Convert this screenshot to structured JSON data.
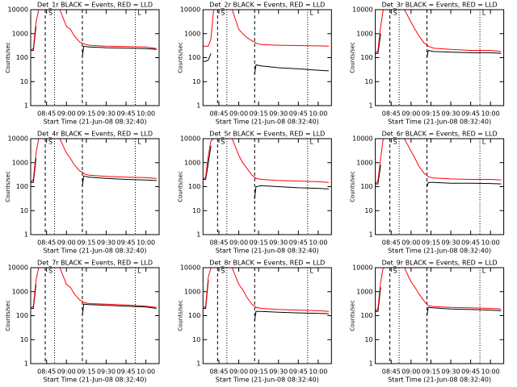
{
  "chart_data": [
    {
      "type": "line",
      "title": "Det_1r BLACK = Events, RED = LLD",
      "x_label": "Start Time (21-Jun-08 08:32:40)",
      "y_label": "Counts/sec",
      "log_y": true,
      "x": [
        "08:33",
        "08:35",
        "08:37",
        "08:39",
        "08:41",
        "08:50",
        "08:55",
        "09:00",
        "09:03",
        "09:06",
        "09:10",
        "09:12",
        "09:13",
        "09:17",
        "09:30",
        "09:45",
        "10:00",
        "10:08"
      ],
      "xlim": [
        "08:33",
        "10:10"
      ],
      "xticks": [
        "08:45",
        "09:00",
        "09:15",
        "09:30",
        "09:45",
        "10:00"
      ],
      "ylim": [
        1,
        10000
      ],
      "yticks": [
        1,
        10,
        100,
        1000,
        10000
      ],
      "dashed": [
        "08:44",
        "09:12"
      ],
      "dotted": [
        "08:51",
        "09:52"
      ],
      "annotations": [
        {
          "text": "S",
          "x": "08:48"
        },
        {
          "text": "L",
          "x": "09:55"
        }
      ],
      "series": [
        {
          "name": "BLACK",
          "color": "#000000",
          "values": [
            200,
            200,
            2000,
            null,
            null,
            null,
            null,
            null,
            null,
            null,
            null,
            100,
            300,
            280,
            260,
            250,
            240,
            220
          ]
        },
        {
          "name": "RED",
          "color": "#ff0000",
          "values": [
            200,
            250,
            3000,
            10000,
            null,
            null,
            10000,
            2000,
            1500,
            800,
            450,
            400,
            380,
            330,
            300,
            290,
            280,
            240
          ]
        }
      ]
    },
    {
      "type": "line",
      "title": "Det_2r BLACK = Events, RED = LLD",
      "x_label": "Start Time (21-Jun-08 08:32:40)",
      "y_label": "Counts/sec",
      "log_y": true,
      "x": [
        "08:33",
        "08:35",
        "08:37",
        "08:39",
        "08:41",
        "08:50",
        "08:55",
        "09:00",
        "09:03",
        "09:06",
        "09:10",
        "09:12",
        "09:13",
        "09:17",
        "09:30",
        "09:45",
        "10:00",
        "10:08"
      ],
      "xlim": [
        "08:33",
        "10:10"
      ],
      "xticks": [
        "08:45",
        "09:00",
        "09:15",
        "09:30",
        "09:45",
        "10:00"
      ],
      "ylim": [
        1,
        10000
      ],
      "yticks": [
        1,
        10,
        100,
        1000,
        10000
      ],
      "dashed": [
        "08:44",
        "09:12"
      ],
      "dotted": [
        "08:51",
        "09:52"
      ],
      "annotations": [
        {
          "text": "S",
          "x": "08:48"
        },
        {
          "text": "L",
          "x": "09:55"
        }
      ],
      "series": [
        {
          "name": "BLACK",
          "color": "#000000",
          "values": [
            70,
            70,
            80,
            150,
            null,
            null,
            null,
            null,
            null,
            null,
            null,
            20,
            50,
            45,
            38,
            34,
            30,
            28
          ]
        },
        {
          "name": "RED",
          "color": "#ff0000",
          "values": [
            300,
            300,
            300,
            600,
            10000,
            null,
            10000,
            1500,
            1000,
            700,
            500,
            450,
            400,
            350,
            330,
            320,
            310,
            300
          ]
        }
      ]
    },
    {
      "type": "line",
      "title": "Det_3r BLACK = Events, RED = LLD",
      "x_label": "Start Time (21-Jun-08 08:32:40)",
      "y_label": "Counts/sec",
      "log_y": true,
      "x": [
        "08:33",
        "08:35",
        "08:37",
        "08:39",
        "08:41",
        "08:50",
        "08:55",
        "09:00",
        "09:03",
        "09:06",
        "09:10",
        "09:12",
        "09:13",
        "09:17",
        "09:30",
        "09:45",
        "10:00",
        "10:08"
      ],
      "xlim": [
        "08:33",
        "10:10"
      ],
      "xticks": [
        "08:45",
        "09:00",
        "09:15",
        "09:30",
        "09:45",
        "10:00"
      ],
      "ylim": [
        1,
        10000
      ],
      "yticks": [
        1,
        10,
        100,
        1000,
        10000
      ],
      "dashed": [
        "08:44",
        "09:12"
      ],
      "dotted": [
        "08:51",
        "09:52"
      ],
      "annotations": [
        {
          "text": "S",
          "x": "08:48"
        },
        {
          "text": "L",
          "x": "09:55"
        }
      ],
      "series": [
        {
          "name": "BLACK",
          "color": "#000000",
          "values": [
            150,
            150,
            1000,
            null,
            null,
            null,
            null,
            null,
            null,
            null,
            null,
            100,
            200,
            180,
            170,
            160,
            160,
            150
          ]
        },
        {
          "name": "RED",
          "color": "#ff0000",
          "values": [
            150,
            200,
            2000,
            10000,
            null,
            null,
            10000,
            3000,
            1500,
            800,
            400,
            350,
            300,
            250,
            220,
            200,
            200,
            180
          ]
        }
      ]
    },
    {
      "type": "line",
      "title": "Det_4r BLACK = Events, RED = LLD",
      "x_label": "Start Time (21-Jun-08 08:32:40)",
      "y_label": "Counts/sec",
      "log_y": true,
      "x": [
        "08:33",
        "08:35",
        "08:37",
        "08:39",
        "08:41",
        "08:50",
        "08:55",
        "09:00",
        "09:03",
        "09:06",
        "09:10",
        "09:12",
        "09:13",
        "09:17",
        "09:30",
        "09:45",
        "10:00",
        "10:08"
      ],
      "xlim": [
        "08:33",
        "10:10"
      ],
      "xticks": [
        "08:45",
        "09:00",
        "09:15",
        "09:30",
        "09:45",
        "10:00"
      ],
      "ylim": [
        1,
        10000
      ],
      "yticks": [
        1,
        10,
        100,
        1000,
        10000
      ],
      "dashed": [
        "08:44",
        "09:12"
      ],
      "dotted": [
        "08:51",
        "09:52"
      ],
      "annotations": [
        {
          "text": "S",
          "x": "08:48"
        },
        {
          "text": "L",
          "x": "09:55"
        }
      ],
      "series": [
        {
          "name": "BLACK",
          "color": "#000000",
          "values": [
            150,
            150,
            1500,
            null,
            null,
            null,
            null,
            null,
            null,
            null,
            null,
            100,
            280,
            250,
            220,
            200,
            190,
            180
          ]
        },
        {
          "name": "RED",
          "color": "#ff0000",
          "values": [
            150,
            200,
            2500,
            10000,
            null,
            null,
            10000,
            2500,
            1500,
            800,
            450,
            400,
            350,
            300,
            270,
            250,
            240,
            220
          ]
        }
      ]
    },
    {
      "type": "line",
      "title": "Det_5r BLACK = Events, RED = LLD",
      "x_label": "Start Time (21-Jun-08 08:32:40)",
      "y_label": "Counts/sec",
      "log_y": true,
      "x": [
        "08:33",
        "08:35",
        "08:37",
        "08:39",
        "08:41",
        "08:50",
        "08:55",
        "09:00",
        "09:03",
        "09:06",
        "09:10",
        "09:12",
        "09:13",
        "09:17",
        "09:30",
        "09:45",
        "10:00",
        "10:08"
      ],
      "xlim": [
        "08:33",
        "10:10"
      ],
      "xticks": [
        "08:45",
        "09:00",
        "09:15",
        "09:30",
        "09:45",
        "10:00"
      ],
      "ylim": [
        1,
        10000
      ],
      "yticks": [
        1,
        10,
        100,
        1000,
        10000
      ],
      "dashed": [
        "08:44",
        "09:12"
      ],
      "dotted": [
        "08:51",
        "09:52"
      ],
      "annotations": [
        {
          "text": "S",
          "x": "08:48"
        },
        {
          "text": "L",
          "x": "09:55"
        }
      ],
      "series": [
        {
          "name": "BLACK",
          "color": "#000000",
          "values": [
            200,
            200,
            1000,
            5000,
            null,
            null,
            null,
            null,
            null,
            null,
            null,
            30,
            100,
            110,
            100,
            90,
            85,
            80
          ]
        },
        {
          "name": "RED",
          "color": "#ff0000",
          "values": [
            200,
            250,
            2000,
            8000,
            10000,
            null,
            10000,
            2000,
            1000,
            600,
            300,
            250,
            220,
            200,
            180,
            170,
            160,
            150
          ]
        }
      ]
    },
    {
      "type": "line",
      "title": "Det_6r BLACK = Events, RED = LLD",
      "x_label": "Start Time (21-Jun-08 08:32:40)",
      "y_label": "Counts/sec",
      "log_y": true,
      "x": [
        "08:33",
        "08:35",
        "08:37",
        "08:39",
        "08:41",
        "08:50",
        "08:55",
        "09:00",
        "09:03",
        "09:06",
        "09:10",
        "09:12",
        "09:13",
        "09:17",
        "09:30",
        "09:45",
        "10:00",
        "10:08"
      ],
      "xlim": [
        "08:33",
        "10:10"
      ],
      "xticks": [
        "08:45",
        "09:00",
        "09:15",
        "09:30",
        "09:45",
        "10:00"
      ],
      "ylim": [
        1,
        10000
      ],
      "yticks": [
        1,
        10,
        100,
        1000,
        10000
      ],
      "dashed": [
        "08:44",
        "09:12"
      ],
      "dotted": [
        "08:51",
        "09:52"
      ],
      "annotations": [
        {
          "text": "S",
          "x": "08:48"
        },
        {
          "text": "L",
          "x": "09:55"
        }
      ],
      "series": [
        {
          "name": "BLACK",
          "color": "#000000",
          "values": [
            130,
            130,
            800,
            null,
            null,
            null,
            null,
            null,
            null,
            null,
            null,
            100,
            150,
            150,
            140,
            140,
            135,
            130
          ]
        },
        {
          "name": "RED",
          "color": "#ff0000",
          "values": [
            130,
            180,
            1500,
            10000,
            null,
            null,
            10000,
            3000,
            1500,
            700,
            350,
            300,
            260,
            230,
            210,
            200,
            200,
            190
          ]
        }
      ]
    },
    {
      "type": "line",
      "title": "Det_7r BLACK = Events, RED = LLD",
      "x_label": "Start Time (21-Jun-08 08:32:40)",
      "y_label": "Counts/sec",
      "log_y": true,
      "x": [
        "08:33",
        "08:35",
        "08:37",
        "08:39",
        "08:41",
        "08:50",
        "08:55",
        "09:00",
        "09:03",
        "09:06",
        "09:10",
        "09:12",
        "09:13",
        "09:17",
        "09:30",
        "09:45",
        "10:00",
        "10:08"
      ],
      "xlim": [
        "08:33",
        "10:10"
      ],
      "xticks": [
        "08:45",
        "09:00",
        "09:15",
        "09:30",
        "09:45",
        "10:00"
      ],
      "ylim": [
        1,
        10000
      ],
      "yticks": [
        1,
        10,
        100,
        1000,
        10000
      ],
      "dashed": [
        "08:44",
        "09:12"
      ],
      "dotted": [
        "08:51",
        "09:52"
      ],
      "annotations": [
        {
          "text": "S",
          "x": "08:48"
        },
        {
          "text": "L",
          "x": "09:55"
        }
      ],
      "series": [
        {
          "name": "BLACK",
          "color": "#000000",
          "values": [
            200,
            200,
            2000,
            null,
            null,
            null,
            null,
            null,
            null,
            null,
            null,
            100,
            300,
            290,
            270,
            250,
            230,
            200
          ]
        },
        {
          "name": "RED",
          "color": "#ff0000",
          "values": [
            200,
            250,
            3000,
            10000,
            null,
            null,
            10000,
            2000,
            1500,
            800,
            450,
            400,
            350,
            320,
            300,
            280,
            250,
            220
          ]
        }
      ]
    },
    {
      "type": "line",
      "title": "Det_8r BLACK = Events, RED = LLD",
      "x_label": "Start Time (21-Jun-08 08:32:40)",
      "y_label": "Counts/sec",
      "log_y": true,
      "x": [
        "08:33",
        "08:35",
        "08:37",
        "08:39",
        "08:41",
        "08:50",
        "08:55",
        "09:00",
        "09:03",
        "09:06",
        "09:10",
        "09:12",
        "09:13",
        "09:17",
        "09:30",
        "09:45",
        "10:00",
        "10:08"
      ],
      "xlim": [
        "08:33",
        "10:10"
      ],
      "xticks": [
        "08:45",
        "09:00",
        "09:15",
        "09:30",
        "09:45",
        "10:00"
      ],
      "ylim": [
        1,
        10000
      ],
      "yticks": [
        1,
        10,
        100,
        1000,
        10000
      ],
      "dashed": [
        "08:44",
        "09:12"
      ],
      "dotted": [
        "08:51",
        "09:52"
      ],
      "annotations": [
        {
          "text": "S",
          "x": "08:48"
        },
        {
          "text": "L",
          "x": "09:55"
        }
      ],
      "series": [
        {
          "name": "BLACK",
          "color": "#000000",
          "values": [
            200,
            200,
            3000,
            null,
            null,
            null,
            null,
            null,
            null,
            null,
            null,
            60,
            150,
            150,
            140,
            130,
            125,
            120
          ]
        },
        {
          "name": "RED",
          "color": "#ff0000",
          "values": [
            200,
            250,
            4000,
            10000,
            null,
            null,
            10000,
            2000,
            1200,
            600,
            300,
            250,
            220,
            200,
            180,
            170,
            160,
            150
          ]
        }
      ]
    },
    {
      "type": "line",
      "title": "Det_9r BLACK = Events, RED = LLD",
      "x_label": "Start Time (21-Jun-08 08:32:40)",
      "y_label": "Counts/sec",
      "log_y": true,
      "x": [
        "08:33",
        "08:35",
        "08:37",
        "08:39",
        "08:41",
        "08:50",
        "08:55",
        "09:00",
        "09:03",
        "09:06",
        "09:10",
        "09:12",
        "09:13",
        "09:17",
        "09:30",
        "09:45",
        "10:00",
        "10:08"
      ],
      "xlim": [
        "08:33",
        "10:10"
      ],
      "xticks": [
        "08:45",
        "09:00",
        "09:15",
        "09:30",
        "09:45",
        "10:00"
      ],
      "ylim": [
        1,
        10000
      ],
      "yticks": [
        1,
        10,
        100,
        1000,
        10000
      ],
      "dashed": [
        "08:44",
        "09:12"
      ],
      "dotted": [
        "08:51",
        "09:52"
      ],
      "annotations": [
        {
          "text": "S",
          "x": "08:48"
        },
        {
          "text": "L",
          "x": "09:55"
        }
      ],
      "series": [
        {
          "name": "BLACK",
          "color": "#000000",
          "values": [
            150,
            150,
            1500,
            null,
            null,
            null,
            null,
            null,
            null,
            null,
            null,
            100,
            220,
            210,
            190,
            180,
            170,
            160
          ]
        },
        {
          "name": "RED",
          "color": "#ff0000",
          "values": [
            150,
            200,
            2500,
            10000,
            null,
            null,
            10000,
            2500,
            1500,
            800,
            400,
            300,
            260,
            240,
            220,
            210,
            200,
            190
          ]
        }
      ]
    }
  ]
}
